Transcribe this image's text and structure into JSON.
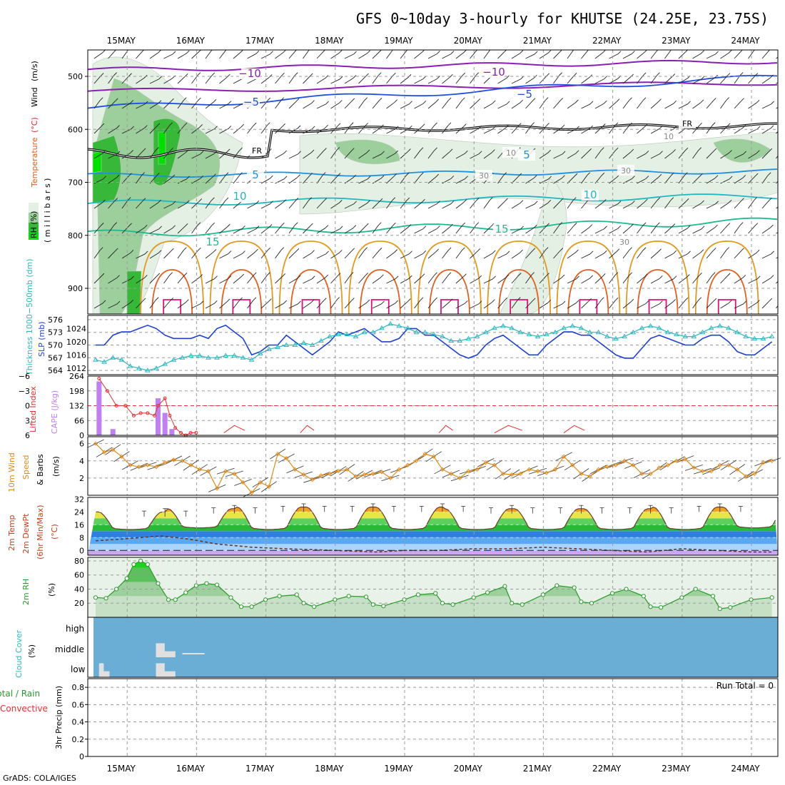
{
  "title": "GFS 0~10day 3-hourly for KHUTSE (24.25E, 23.75S)",
  "credit": "GrADS: COLA/IGES",
  "dates": [
    "15MAY",
    "16MAY",
    "17MAY",
    "18MAY",
    "19MAY",
    "20MAY",
    "21MAY",
    "22MAY",
    "23MAY",
    "24MAY"
  ],
  "colors": {
    "rh_light": "#e3f0e3",
    "rh_mid": "#9ccf9c",
    "rh_dark": "#38b838",
    "rh_max": "#00e000",
    "temp_minus10": "#8a1fb0",
    "temp_minus5": "#1f4fe0",
    "temp_5": "#1f8fe0",
    "temp_10": "#1fb8c0",
    "temp_15": "#1fb890",
    "temp_20": "#e09a1f",
    "temp_25": "#e0601f",
    "temp_30": "#e0107a",
    "freezing": "#000000",
    "slp": "#1f3fd0",
    "thickness": "#2fb8c0",
    "cape": "#c080f0",
    "lifted_index": "#e03030",
    "wind10m": "#e08a1a",
    "cloud_bg": "#6aaed6",
    "cloud_fill": "#e0e0e0",
    "rh2m": "#2a9a2a"
  },
  "panel1": {
    "ylabel_parts": [
      "RH (%)",
      "Temperature",
      "(°C)",
      "Wind",
      "(m/s)"
    ],
    "ylabel2": "( m i l l i b a r s )",
    "yticks": [
      "500",
      "600",
      "700",
      "800",
      "900"
    ],
    "contour_labels": [
      "−10",
      "−10",
      "−5",
      "−5",
      "5",
      "5",
      "10",
      "10",
      "15",
      "15",
      "FR",
      "FR",
      "10",
      "10",
      "30",
      "30",
      "30"
    ]
  },
  "panel2": {
    "ylabel_left": "Thickness 1000−500mb (dm)",
    "ylabel_right": "SLP (mb)",
    "yticks_left": [
      "564",
      "567",
      "570",
      "573",
      "576"
    ],
    "yticks_right": [
      "1012",
      "1016",
      "1020",
      "1024"
    ]
  },
  "panel3": {
    "ylabel_left": "Lifted Index",
    "ylabel_right": "CAPE (J/kg)",
    "yticks_left": [
      "−6",
      "−3",
      "0",
      "3",
      "6"
    ],
    "yticks_right": [
      "264",
      "198",
      "132",
      "66",
      "0"
    ]
  },
  "panel4": {
    "ylabel_lines": [
      "10m Wind",
      "Speed",
      "& Barbs",
      "(m/s)"
    ],
    "yticks": [
      "2",
      "4",
      "6"
    ]
  },
  "panel5": {
    "ylabel_lines": [
      "2m Temp",
      "2m DewPt",
      "(6hr Min/Max)",
      "(°C)"
    ],
    "yticks": [
      "0",
      "8",
      "16",
      "24",
      "32"
    ]
  },
  "panel6": {
    "ylabel_lines": [
      "2m RH",
      "(%)"
    ],
    "yticks": [
      "20",
      "40",
      "60",
      "80"
    ]
  },
  "panel7": {
    "ylabel_lines": [
      "Cloud Cover",
      "(%)"
    ],
    "levels": [
      "high",
      "middle",
      "low"
    ]
  },
  "panel8": {
    "ylabel_left_lines": [
      "Total / Rain",
      "Convective"
    ],
    "ylabel_right": "3hr Precip (mm)",
    "yticks": [
      "0",
      "0.2",
      "0.4",
      "0.6",
      "0.8"
    ],
    "run_total": "Run Total = 0"
  },
  "chart_data": [
    {
      "type": "line",
      "name": "Sea level pressure",
      "units": "mb",
      "ylim": [
        1010,
        1028
      ],
      "start_day": 14.55,
      "step_hours": 3,
      "values": [
        1019,
        1019,
        1022,
        1023,
        1023,
        1024,
        1025,
        1024,
        1022,
        1021,
        1021,
        1021,
        1022,
        1021,
        1024,
        1025,
        1023,
        1021,
        1016,
        1017,
        1019,
        1019,
        1022,
        1020,
        1018,
        1016,
        1018,
        1020,
        1023,
        1022,
        1023,
        1024,
        1022,
        1020,
        1020,
        1021,
        1024,
        1024,
        1022,
        1022,
        1020,
        1018,
        1016,
        1015,
        1016,
        1019,
        1021,
        1022,
        1020,
        1018,
        1016,
        1016,
        1019,
        1021,
        1023,
        1023,
        1022,
        1022,
        1020,
        1018,
        1016,
        1015,
        1015,
        1018,
        1021,
        1022,
        1021,
        1020,
        1019,
        1019,
        1021,
        1022,
        1022,
        1020,
        1017,
        1016,
        1016,
        1018,
        1020,
        1020,
        1019,
        1018,
        1016,
        1015,
        1015,
        1015,
        1016,
        1014,
        1012,
        1011,
        1012,
        1013,
        1013,
        1014,
        1014,
        1016,
        1017
      ]
    },
    {
      "type": "line",
      "name": "1000-500mb thickness",
      "units": "dm",
      "ylim": [
        563,
        577
      ],
      "start_day": 14.55,
      "step_hours": 3,
      "values": [
        566.5,
        566,
        567,
        566.5,
        565,
        564.5,
        564,
        564.5,
        565.5,
        566.5,
        567,
        567.5,
        567.5,
        567,
        567,
        567.5,
        567.5,
        567,
        566.5,
        568,
        569,
        569.5,
        570,
        570,
        570.5,
        570,
        571,
        572,
        572.5,
        572.5,
        572,
        573,
        573,
        574,
        575,
        574.5,
        574,
        573,
        573,
        572.5,
        572,
        571,
        571,
        571.5,
        572,
        573,
        574,
        574.5,
        574,
        573,
        572.5,
        572,
        572.5,
        573,
        574,
        574.5,
        574,
        573,
        573,
        572,
        571.5,
        572,
        573,
        574,
        574.5,
        574,
        573,
        572.5,
        572,
        572,
        573,
        574,
        574.5,
        574,
        573,
        572,
        571.5,
        571.5,
        572,
        573,
        574,
        574.5,
        574,
        573,
        572,
        572,
        573,
        574.5,
        574.5,
        574,
        573,
        572,
        572,
        572.5,
        573,
        572.5,
        572,
        571,
        570.5
      ]
    },
    {
      "type": "bar",
      "name": "CAPE",
      "units": "J/kg",
      "ylim": [
        0,
        264
      ],
      "x_day": [
        14.6,
        14.8,
        15.45,
        15.55,
        15.65
      ],
      "values": [
        240,
        28,
        165,
        100,
        28
      ]
    },
    {
      "type": "line",
      "name": "Lifted Index",
      "units": "",
      "ylim": [
        6,
        -6
      ],
      "x_day": [
        14.6,
        14.72,
        14.85,
        14.98,
        15.1,
        15.2,
        15.3,
        15.4,
        15.45,
        15.55,
        15.62,
        15.7,
        15.78,
        15.85,
        15.92,
        16.0
      ],
      "values": [
        -5.5,
        -3,
        0,
        0,
        2,
        1.5,
        1.5,
        2,
        0,
        -1.5,
        2,
        4.5,
        5.5,
        6,
        5.5,
        5.5
      ]
    },
    {
      "type": "line",
      "name": "10m wind speed",
      "units": "m/s",
      "ylim": [
        0,
        6.8
      ],
      "start_day": 14.55,
      "step_hours": 3,
      "values": [
        6,
        5,
        5.3,
        4.5,
        3.5,
        3.3,
        3.5,
        3.3,
        3.8,
        4.1,
        4,
        3.5,
        3,
        2.8,
        0.8,
        2.8,
        2.5,
        1.5,
        0.3,
        1.5,
        1,
        4.8,
        4.3,
        3,
        2.4,
        1.8,
        2.3,
        2.5,
        2.8,
        3,
        2.2,
        2.4,
        2.5,
        2.7,
        2,
        3,
        3.5,
        4,
        4.8,
        4.5,
        3,
        2.5,
        2,
        2.8,
        3,
        3.8,
        3.5,
        2.5,
        2.4,
        2.5,
        3,
        2.8,
        2.6,
        3,
        4.5,
        3.5,
        2.5,
        2.2,
        3,
        3.3,
        3.5,
        4,
        3.5,
        2.5,
        2.5,
        3.2,
        3.5,
        4,
        4.2,
        3.2,
        2.8,
        2.8,
        3.5,
        3.5,
        3,
        2.2,
        2.5,
        3.8,
        4,
        2.2,
        2.2,
        3.5,
        3.5,
        4,
        3,
        1.5,
        1.8,
        3,
        2.5,
        3.5,
        4,
        4.8,
        4.8,
        3.8,
        2.5,
        2.2,
        3.5,
        4,
        1.8
      ]
    },
    {
      "type": "area",
      "name": "2m temperature",
      "units": "°C",
      "ylim": [
        -3,
        33
      ],
      "peaks_day": [
        15.55,
        16.55,
        17.55,
        18.55,
        19.55,
        20.55,
        21.55,
        22.55,
        23.55
      ],
      "max_temp": [
        24,
        26,
        27,
        27,
        27,
        26,
        26,
        26,
        27
      ],
      "min_temp": [
        13,
        14,
        13,
        13,
        13,
        13,
        13,
        13,
        13,
        14
      ]
    },
    {
      "type": "line",
      "name": "2m dew point",
      "units": "°C",
      "ylim": [
        -3,
        33
      ],
      "x_day": [
        14.55,
        14.9,
        15.2,
        15.5,
        15.9,
        16.3,
        16.8,
        17.3,
        18.0,
        18.6,
        19.0,
        19.5,
        20.0,
        20.5,
        21.0,
        21.5,
        22.0,
        22.5,
        23.0,
        23.5,
        24.0,
        24.3
      ],
      "values": [
        6,
        7,
        8,
        9,
        7,
        4,
        2,
        1,
        0,
        -1,
        0,
        0,
        1,
        1,
        2,
        1,
        0,
        -1,
        1,
        0,
        -1,
        -1
      ]
    },
    {
      "type": "line",
      "name": "2m relative humidity",
      "units": "%",
      "ylim": [
        0,
        85
      ],
      "x_day": [
        14.55,
        14.7,
        14.85,
        15.0,
        15.1,
        15.2,
        15.3,
        15.45,
        15.6,
        15.7,
        15.85,
        16.0,
        16.15,
        16.3,
        16.5,
        16.65,
        16.8,
        17.0,
        17.2,
        17.45,
        17.55,
        17.7,
        18.0,
        18.2,
        18.45,
        18.55,
        18.7,
        19.0,
        19.2,
        19.45,
        19.55,
        19.7,
        20.0,
        20.2,
        20.45,
        20.55,
        20.7,
        21.0,
        21.2,
        21.45,
        21.55,
        21.7,
        22.0,
        22.2,
        22.45,
        22.55,
        22.7,
        23.0,
        23.2,
        23.45,
        23.55,
        23.7,
        24.0,
        24.3
      ],
      "values": [
        28,
        27,
        40,
        55,
        75,
        80,
        75,
        48,
        25,
        25,
        35,
        45,
        48,
        46,
        28,
        15,
        15,
        25,
        30,
        32,
        20,
        15,
        25,
        30,
        29,
        18,
        16,
        25,
        32,
        34,
        20,
        18,
        28,
        35,
        44,
        20,
        18,
        32,
        45,
        42,
        22,
        20,
        34,
        40,
        30,
        15,
        14,
        28,
        40,
        30,
        12,
        14,
        25,
        28
      ]
    },
    {
      "type": "bar",
      "name": "Cloud cover",
      "units": "%",
      "levels": [
        "high",
        "middle",
        "low"
      ],
      "segments": [
        {
          "level": "low",
          "x_day": [
            14.6,
            14.75
          ],
          "value": 100
        },
        {
          "level": "middle",
          "x_day": [
            15.42,
            15.7
          ],
          "value": 100
        },
        {
          "level": "middle",
          "x_day": [
            15.8,
            16.12
          ],
          "value": 20
        },
        {
          "level": "low",
          "x_day": [
            15.42,
            15.7
          ],
          "value": 100
        }
      ]
    },
    {
      "type": "bar",
      "name": "3hr precipitation",
      "units": "mm",
      "ylim": [
        0,
        0.9
      ],
      "values": []
    }
  ]
}
